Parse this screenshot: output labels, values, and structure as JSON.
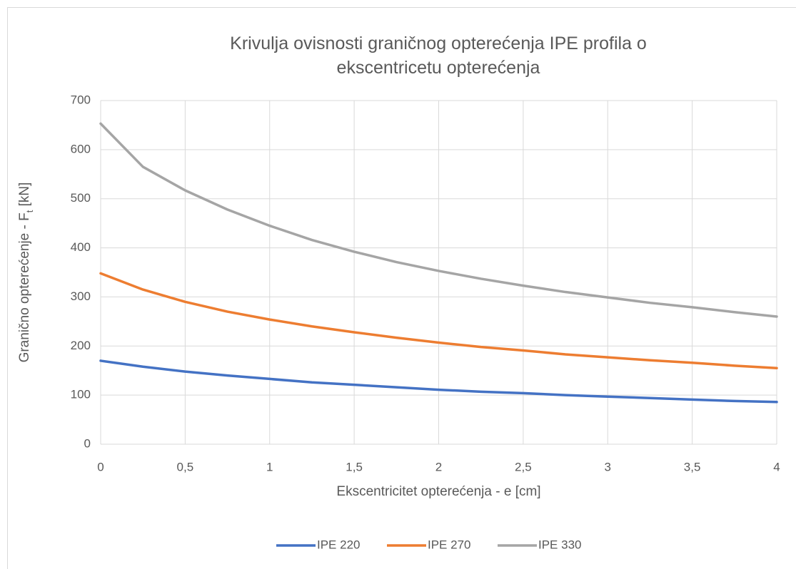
{
  "chart_data": {
    "type": "line",
    "title": "Krivulja ovisnosti graničnog opterećenja IPE profila o ekscentricetu opterećenja",
    "xlabel": "Ekscentricitet opterećenja - e [cm]",
    "ylabel": [
      "Granično opterećenje - F",
      "t",
      " [kN]"
    ],
    "x": [
      0,
      0.25,
      0.5,
      0.75,
      1,
      1.25,
      1.5,
      1.75,
      2,
      2.25,
      2.5,
      2.75,
      3,
      3.25,
      3.5,
      3.75,
      4
    ],
    "series": [
      {
        "name": "IPE 220",
        "color": "#4472c4",
        "values": [
          170,
          158,
          148,
          140,
          133,
          126,
          121,
          116,
          111,
          107,
          104,
          100,
          97,
          94,
          91,
          88,
          86
        ]
      },
      {
        "name": "IPE 270",
        "color": "#ed7d31",
        "values": [
          348,
          315,
          290,
          270,
          254,
          240,
          228,
          217,
          207,
          198,
          191,
          183,
          177,
          171,
          166,
          160,
          155
        ]
      },
      {
        "name": "IPE 330",
        "color": "#a5a5a5",
        "values": [
          653,
          565,
          517,
          478,
          445,
          416,
          392,
          371,
          353,
          337,
          323,
          310,
          299,
          288,
          279,
          269,
          260
        ]
      }
    ],
    "xlim": [
      0,
      4
    ],
    "xticks": [
      0,
      {
        "value": 0.5,
        "label": "0,5"
      },
      1,
      {
        "value": 1.5,
        "label": "1,5"
      },
      2,
      {
        "value": 2.5,
        "label": "2,5"
      },
      3,
      {
        "value": 3.5,
        "label": "3,5"
      },
      4
    ],
    "ylim": [
      0,
      700
    ],
    "yticks": [
      0,
      100,
      200,
      300,
      400,
      500,
      600,
      700
    ],
    "grid": true,
    "legend": "bottom"
  }
}
